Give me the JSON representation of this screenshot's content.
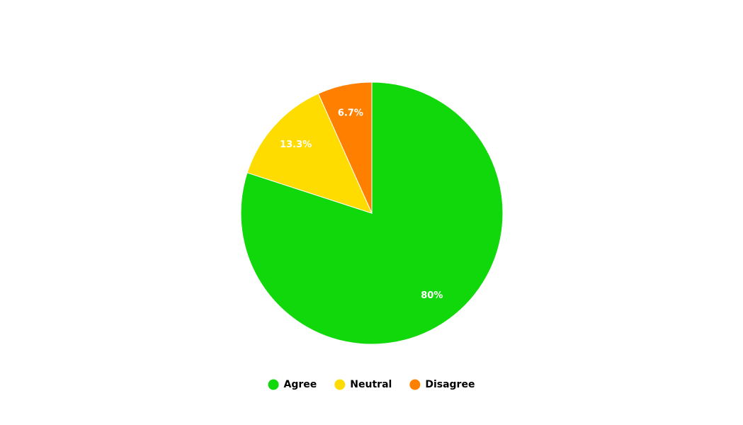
{
  "chart_data": {
    "type": "pie",
    "title": "",
    "categories": [
      "Agree",
      "Neutral",
      "Disagree"
    ],
    "values": [
      80,
      13.3,
      6.7
    ],
    "data_labels": [
      "80%",
      "13.3%",
      "6.7%"
    ],
    "colors": [
      "#11d80a",
      "#ffdc00",
      "#ff7f00"
    ],
    "legend_position": "bottom-center",
    "start_angle": "top, clockwise"
  },
  "legend": {
    "items": [
      {
        "label": "Agree",
        "color": "#11d80a"
      },
      {
        "label": "Neutral",
        "color": "#ffdc00"
      },
      {
        "label": "Disagree",
        "color": "#ff7f00"
      }
    ]
  }
}
